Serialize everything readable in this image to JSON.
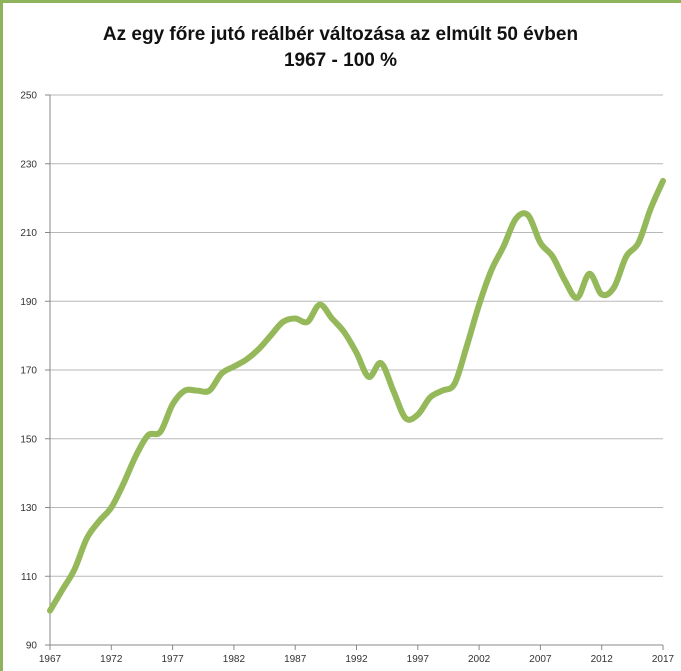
{
  "colors": {
    "frame": "#8fb35a",
    "line": "#94b85a",
    "grid": "#b8b8b8",
    "axis": "#888888",
    "text": "#111111"
  },
  "chart_data": {
    "type": "line",
    "title": "Az egy főre jutó reálbér változása az elmúlt 50 évben",
    "subtitle": "1967 - 100 %",
    "xlabel": "",
    "ylabel": "",
    "xlim": [
      1967,
      2017
    ],
    "ylim": [
      90,
      250
    ],
    "grid": true,
    "legend": "none",
    "x_ticks": [
      1967,
      1972,
      1977,
      1982,
      1987,
      1992,
      1997,
      2002,
      2007,
      2012,
      2017
    ],
    "y_ticks": [
      90,
      110,
      130,
      150,
      170,
      190,
      210,
      230,
      250
    ],
    "series": [
      {
        "x": [
          1967,
          1968,
          1969,
          1970,
          1971,
          1972,
          1973,
          1974,
          1975,
          1976,
          1977,
          1978,
          1979,
          1980,
          1981,
          1982,
          1983,
          1984,
          1985,
          1986,
          1987,
          1988,
          1989,
          1990,
          1991,
          1992,
          1993,
          1994,
          1995,
          1996,
          1997,
          1998,
          1999,
          2000,
          2001,
          2002,
          2003,
          2004,
          2005,
          2006,
          2007,
          2008,
          2009,
          2010,
          2011,
          2012,
          2013,
          2014,
          2015,
          2016,
          2017
        ],
        "values": [
          100,
          106,
          112,
          121,
          126,
          130,
          137,
          145,
          151,
          152,
          160,
          164,
          164,
          164,
          169,
          171,
          173,
          176,
          180,
          184,
          185,
          184,
          189,
          185,
          181,
          175,
          168,
          172,
          164,
          156,
          157,
          162,
          164,
          166,
          177,
          189,
          199,
          206,
          214,
          215,
          207,
          203,
          196,
          191,
          198,
          192,
          194,
          203,
          207,
          217,
          225
        ]
      }
    ]
  }
}
